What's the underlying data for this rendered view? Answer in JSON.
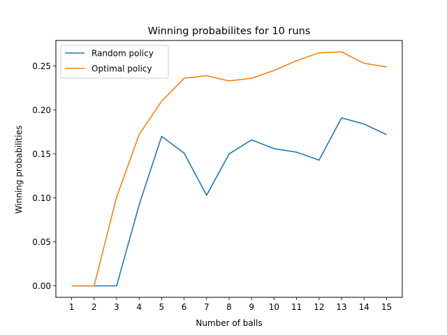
{
  "chart_data": {
    "type": "line",
    "title": "Winning probabilites for 10 runs",
    "xlabel": "Number of balls",
    "ylabel": "Winning probabilities",
    "x": [
      1,
      2,
      3,
      4,
      5,
      6,
      7,
      8,
      9,
      10,
      11,
      12,
      13,
      14,
      15
    ],
    "xlim": [
      0.3,
      15.7
    ],
    "ylim": [
      -0.013,
      0.279
    ],
    "yticks": [
      0.0,
      0.05,
      0.1,
      0.15,
      0.2,
      0.25
    ],
    "ytick_labels": [
      "0.00",
      "0.05",
      "0.10",
      "0.15",
      "0.20",
      "0.25"
    ],
    "grid": false,
    "legend": "upper-left",
    "series": [
      {
        "name": "Random policy",
        "color": "#1f77b4",
        "values": [
          0.0,
          0.0,
          0.0,
          0.092,
          0.17,
          0.151,
          0.103,
          0.15,
          0.166,
          0.156,
          0.152,
          0.143,
          0.191,
          0.184,
          0.172
        ]
      },
      {
        "name": "Optimal policy",
        "color": "#ff7f0e",
        "values": [
          0.0,
          0.0,
          0.101,
          0.172,
          0.21,
          0.236,
          0.239,
          0.233,
          0.236,
          0.245,
          0.256,
          0.265,
          0.266,
          0.253,
          0.249
        ]
      }
    ]
  }
}
